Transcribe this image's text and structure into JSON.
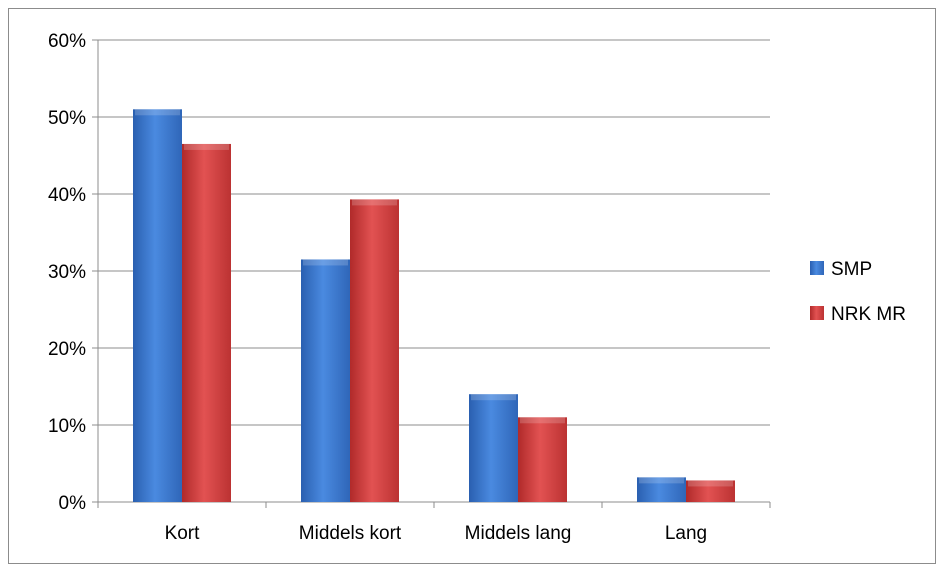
{
  "chart_data": {
    "type": "bar",
    "title": "",
    "xlabel": "",
    "ylabel": "",
    "categories": [
      "Kort",
      "Middels kort",
      "Middels lang",
      "Lang"
    ],
    "series": [
      {
        "name": "SMP",
        "values": [
          51,
          31.5,
          14,
          3.2
        ],
        "color": "#3e7bd1"
      },
      {
        "name": "NRK MR",
        "values": [
          46.5,
          39.3,
          11,
          2.8
        ],
        "color": "#d84343"
      }
    ],
    "ylim": [
      0,
      60
    ],
    "yticks": [
      "0%",
      "10%",
      "20%",
      "30%",
      "40%",
      "50%",
      "60%"
    ],
    "grid": true,
    "legend_position": "right"
  }
}
